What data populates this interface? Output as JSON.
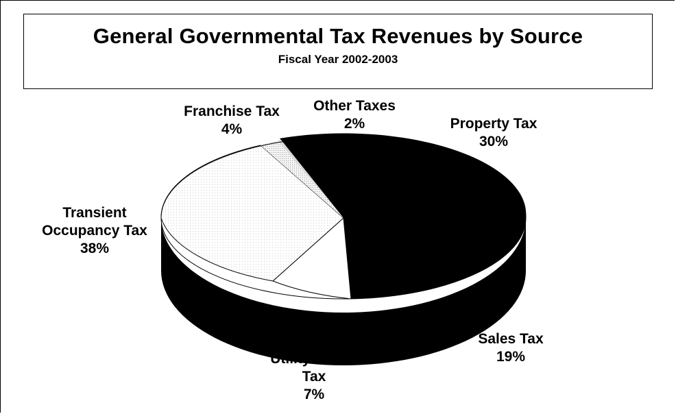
{
  "chart_data": {
    "type": "pie",
    "title": "General Governmental Tax Revenues by Source",
    "subtitle": "Fiscal Year 2002-2003",
    "slices": [
      {
        "label": "Property Tax",
        "value": 30,
        "value_label": "30%"
      },
      {
        "label": "Sales Tax",
        "value": 19,
        "value_label": "19%"
      },
      {
        "label": "Utility User's Tax",
        "value": 7,
        "value_label": "7%"
      },
      {
        "label": "Transient Occupancy Tax",
        "value": 38,
        "value_label": "38%"
      },
      {
        "label": "Franchise Tax",
        "value": 4,
        "value_label": "4%"
      },
      {
        "label": "Other Taxes",
        "value": 2,
        "value_label": "2%"
      }
    ],
    "labels": {
      "property": [
        "Property Tax",
        "30%"
      ],
      "sales": [
        "Sales Tax",
        "19%"
      ],
      "utility": [
        "Utility User's",
        "Tax",
        "7%"
      ],
      "transient": [
        "Transient",
        "Occupancy Tax",
        "38%"
      ],
      "franchise": [
        "Franchise Tax",
        "4%"
      ],
      "other": [
        "Other Taxes",
        "2%"
      ]
    },
    "legend": "none"
  }
}
